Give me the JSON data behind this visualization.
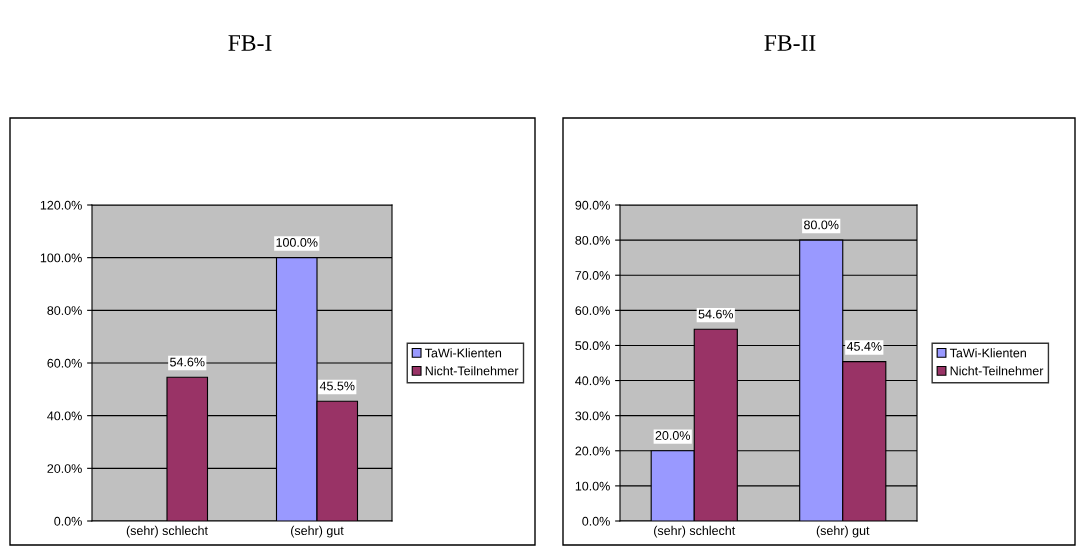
{
  "chart_data": [
    {
      "type": "bar",
      "title": "FB-I",
      "categories": [
        "(sehr) schlecht",
        "(sehr) gut"
      ],
      "ylim": [
        0,
        120
      ],
      "yticks": [
        {
          "value": 0,
          "label": "0.0%"
        },
        {
          "value": 20,
          "label": "20.0%"
        },
        {
          "value": 40,
          "label": "40.0%"
        },
        {
          "value": 60,
          "label": "60.0%"
        },
        {
          "value": 80,
          "label": "80.0%"
        },
        {
          "value": 100,
          "label": "100.0%"
        },
        {
          "value": 120,
          "label": "120.0%"
        }
      ],
      "grid": "y",
      "legend": "right",
      "series": [
        {
          "name": "TaWi-Klienten",
          "color": "#9999ff",
          "values": [
            null,
            100.0
          ],
          "value_labels": [
            null,
            "100.0%"
          ]
        },
        {
          "name": "Nicht-Teilnehmer",
          "color": "#993366",
          "values": [
            54.6,
            45.5
          ],
          "value_labels": [
            "54.6%",
            "45.5%"
          ]
        }
      ]
    },
    {
      "type": "bar",
      "title": "FB-II",
      "categories": [
        "(sehr) schlecht",
        "(sehr) gut"
      ],
      "ylim": [
        0,
        90
      ],
      "yticks": [
        {
          "value": 0,
          "label": "0.0%"
        },
        {
          "value": 10,
          "label": "10.0%"
        },
        {
          "value": 20,
          "label": "20.0%"
        },
        {
          "value": 30,
          "label": "30.0%"
        },
        {
          "value": 40,
          "label": "40.0%"
        },
        {
          "value": 50,
          "label": "50.0%"
        },
        {
          "value": 60,
          "label": "60.0%"
        },
        {
          "value": 70,
          "label": "70.0%"
        },
        {
          "value": 80,
          "label": "80.0%"
        },
        {
          "value": 90,
          "label": "90.0%"
        }
      ],
      "grid": "y",
      "legend": "right",
      "series": [
        {
          "name": "TaWi-Klienten",
          "color": "#9999ff",
          "values": [
            20.0,
            80.0
          ],
          "value_labels": [
            "20.0%",
            "80.0%"
          ]
        },
        {
          "name": "Nicht-Teilnehmer",
          "color": "#993366",
          "values": [
            54.6,
            45.4
          ],
          "value_labels": [
            "54.6%",
            "45.4%"
          ]
        }
      ]
    }
  ]
}
